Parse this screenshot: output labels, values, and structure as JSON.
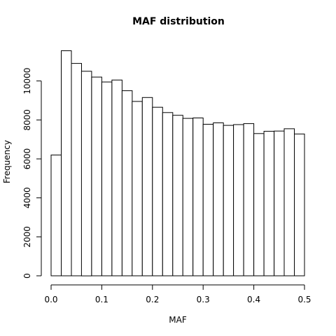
{
  "chart_data": {
    "type": "bar",
    "subtype": "histogram",
    "title": "MAF distribution",
    "xlabel": "MAF",
    "ylabel": "Frequency",
    "xlim": [
      0.0,
      0.5
    ],
    "ylim": [
      0,
      11500
    ],
    "x_ticks": [
      "0.0",
      "0.1",
      "0.2",
      "0.3",
      "0.4",
      "0.5"
    ],
    "y_ticks": [
      "0",
      "2000",
      "4000",
      "6000",
      "8000",
      "10000"
    ],
    "bin_edges": [
      0.0,
      0.02,
      0.04,
      0.06,
      0.08,
      0.1,
      0.12,
      0.14,
      0.16,
      0.18,
      0.2,
      0.22,
      0.24,
      0.26,
      0.28,
      0.3,
      0.32,
      0.34,
      0.36,
      0.38,
      0.4,
      0.42,
      0.44,
      0.46,
      0.48,
      0.5
    ],
    "values": [
      6200,
      11550,
      10900,
      10500,
      10200,
      9950,
      10050,
      9500,
      8950,
      9150,
      8650,
      8380,
      8240,
      8080,
      8100,
      7780,
      7850,
      7720,
      7760,
      7810,
      7300,
      7420,
      7430,
      7550,
      7280
    ],
    "bar_fill": "#ffffff",
    "bar_stroke": "#000000",
    "grid": false,
    "legend": "none"
  }
}
